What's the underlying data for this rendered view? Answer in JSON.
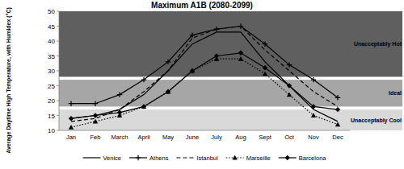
{
  "chart_data": {
    "type": "line",
    "title": "Maximum A1B (2080-2099)",
    "y_label": "Average Daytime High Temperature, with Humidex (°C)",
    "categories": [
      "Jan",
      "Feb",
      "March",
      "April",
      "May",
      "June",
      "July",
      "Aug",
      "Sept",
      "Oct",
      "Nov",
      "Dec"
    ],
    "ylim": [
      10,
      50
    ],
    "yticks": [
      10,
      15,
      20,
      25,
      30,
      35,
      40,
      45,
      50
    ],
    "grid": false,
    "legend": "bottom",
    "bands": [
      {
        "label": "Unacceptably Hot",
        "from": 28,
        "to": 50,
        "color": "#5f5f5f"
      },
      {
        "label": "Ideal",
        "from": 18,
        "to": 27,
        "color": "#a6a6a6"
      },
      {
        "label": "Unacceptably Cool",
        "from": 10,
        "to": 17,
        "color": "#d9d9d9"
      }
    ],
    "series": [
      {
        "name": "Venice",
        "color": "#000000",
        "line_style": "solid",
        "marker": "none",
        "values": [
          14,
          15,
          17,
          22,
          30,
          39,
          43,
          43,
          33,
          25,
          17,
          13
        ]
      },
      {
        "name": "Athens",
        "color": "#000000",
        "line_style": "solid",
        "marker": "plus",
        "values": [
          19,
          19,
          22,
          27,
          33,
          42,
          44,
          45,
          39,
          32,
          27,
          21
        ]
      },
      {
        "name": "Istanbul",
        "color": "#000000",
        "line_style": "dashed",
        "marker": "none",
        "values": [
          13,
          14,
          17,
          23,
          30,
          41,
          44,
          45,
          37,
          30,
          23,
          18
        ]
      },
      {
        "name": "Marseille",
        "color": "#000000",
        "line_style": "dotted",
        "marker": "triangle",
        "values": [
          11,
          13,
          15,
          18,
          23,
          30,
          34,
          34,
          29,
          22,
          15,
          12
        ]
      },
      {
        "name": "Barcelona",
        "color": "#000000",
        "line_style": "solid",
        "marker": "diamond",
        "values": [
          14,
          15,
          16,
          18,
          23,
          30,
          35,
          36,
          31,
          25,
          18,
          17
        ]
      }
    ]
  }
}
